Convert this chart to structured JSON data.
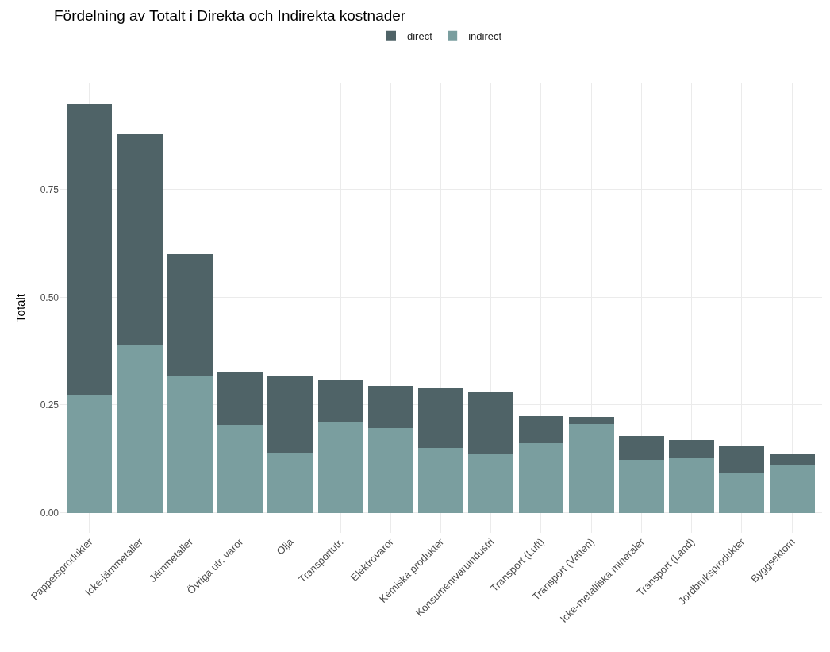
{
  "chart_data": {
    "type": "bar",
    "title": "Fördelning av Totalt i Direkta och Indirekta kostnader",
    "ylabel": "Totalt",
    "stacked": true,
    "legend": "top",
    "grid": true,
    "categories": [
      "Pappersprodukter",
      "Icke-järnmetaller",
      "Järnmetaller",
      "Övriga utr. varor",
      "Olja",
      "Transportutr.",
      "Elektrovaror",
      "Kemiska produkter",
      "Konsumentvaruindustri",
      "Transport (Luft)",
      "Transport (Vatten)",
      "Icke-metalliska mineraler",
      "Transport (Land)",
      "Jordbruksprodukter",
      "Byggsektorn"
    ],
    "series": [
      {
        "name": "indirect",
        "color": "#7a9e9f",
        "values": [
          0.273,
          0.388,
          0.318,
          0.203,
          0.138,
          0.212,
          0.196,
          0.15,
          0.136,
          0.162,
          0.205,
          0.122,
          0.127,
          0.092,
          0.111
        ]
      },
      {
        "name": "direct",
        "color": "#4f6367",
        "values": [
          0.676,
          0.491,
          0.282,
          0.123,
          0.181,
          0.097,
          0.099,
          0.138,
          0.145,
          0.062,
          0.017,
          0.056,
          0.041,
          0.063,
          0.025
        ]
      }
    ],
    "ylim": [
      -0.047,
      0.997
    ],
    "yticks": [
      {
        "value": 0,
        "label": "0.00"
      },
      {
        "value": 0.25,
        "label": "0.25"
      },
      {
        "value": 0.5,
        "label": "0.50"
      },
      {
        "value": 0.75,
        "label": "0.75"
      }
    ]
  }
}
